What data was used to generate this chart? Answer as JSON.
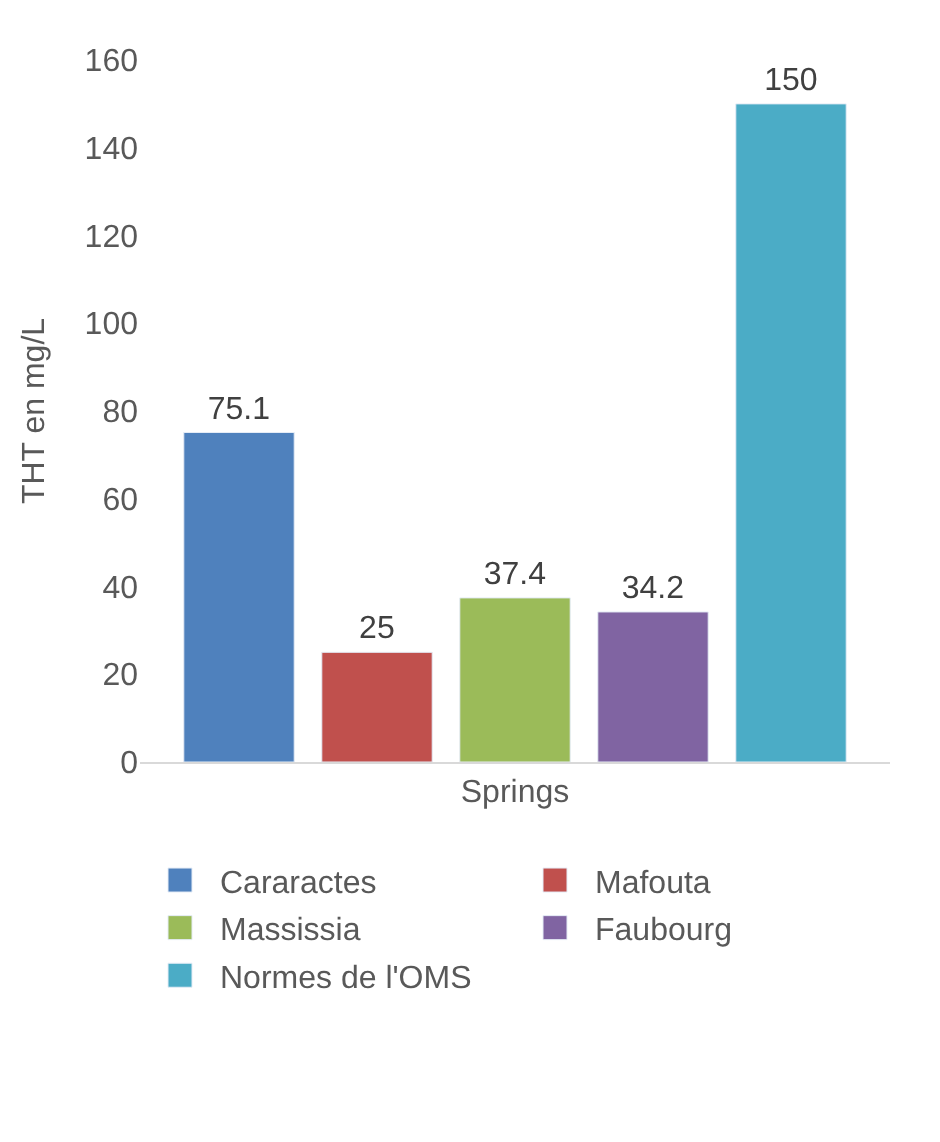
{
  "chart_data": {
    "type": "bar",
    "ylabel": "THT en mg/L",
    "categories": [
      "Springs"
    ],
    "series": [
      {
        "name": "Cararactes",
        "color": "#4f81bd",
        "values": [
          75.1
        ]
      },
      {
        "name": "Mafouta",
        "color": "#c0504d",
        "values": [
          25
        ]
      },
      {
        "name": "Massissia",
        "color": "#9bbb59",
        "values": [
          37.4
        ]
      },
      {
        "name": "Faubourg",
        "color": "#8064a2",
        "values": [
          34.2
        ]
      },
      {
        "name": "Normes de l'OMS",
        "color": "#4bacc6",
        "values": [
          150
        ]
      }
    ],
    "ylim": [
      0,
      160
    ],
    "yticks": [
      0,
      20,
      40,
      60,
      80,
      100,
      120,
      140,
      160
    ],
    "data_labels": true,
    "grid": false,
    "legend": "bottom"
  }
}
